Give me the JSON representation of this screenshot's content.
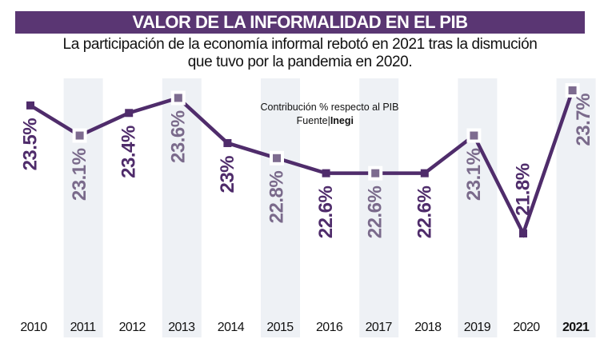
{
  "title": "VALOR DE LA INFORMALIDAD EN EL PIB",
  "subtitle_lines": [
    "La participación de la economía informal rebotó en 2021 tras la dismución",
    "que tuvo por la pandemia en 2020."
  ],
  "colors": {
    "title_bg": "#5a3673",
    "line": "#4f2c6b",
    "marker_dark": "#4f2c6b",
    "marker_light": "#7d6b8f",
    "label_light": "#7a6a8b",
    "band": "#eef1f5"
  },
  "chart_data": {
    "type": "line",
    "title": "VALOR DE LA INFORMALIDAD EN EL PIB",
    "note": "Contribución % respecto al PIB",
    "source_label": "Fuente|",
    "source": "Inegi",
    "categories": [
      "2010",
      "2011",
      "2012",
      "2013",
      "2014",
      "2015",
      "2016",
      "2017",
      "2018",
      "2019",
      "2020",
      "2021"
    ],
    "values": [
      23.5,
      23.1,
      23.4,
      23.6,
      23.0,
      22.8,
      22.6,
      22.6,
      22.6,
      23.1,
      21.8,
      23.7
    ],
    "labels": [
      "23.5%",
      "23.1%",
      "23.4%",
      "23.6%",
      "23%",
      "22.8%",
      "22.6%",
      "22.6%",
      "22.6%",
      "23.1%",
      "21.8%",
      "23.7%"
    ],
    "highlight_category": "2021",
    "grid": false,
    "alternating_bands": true
  }
}
